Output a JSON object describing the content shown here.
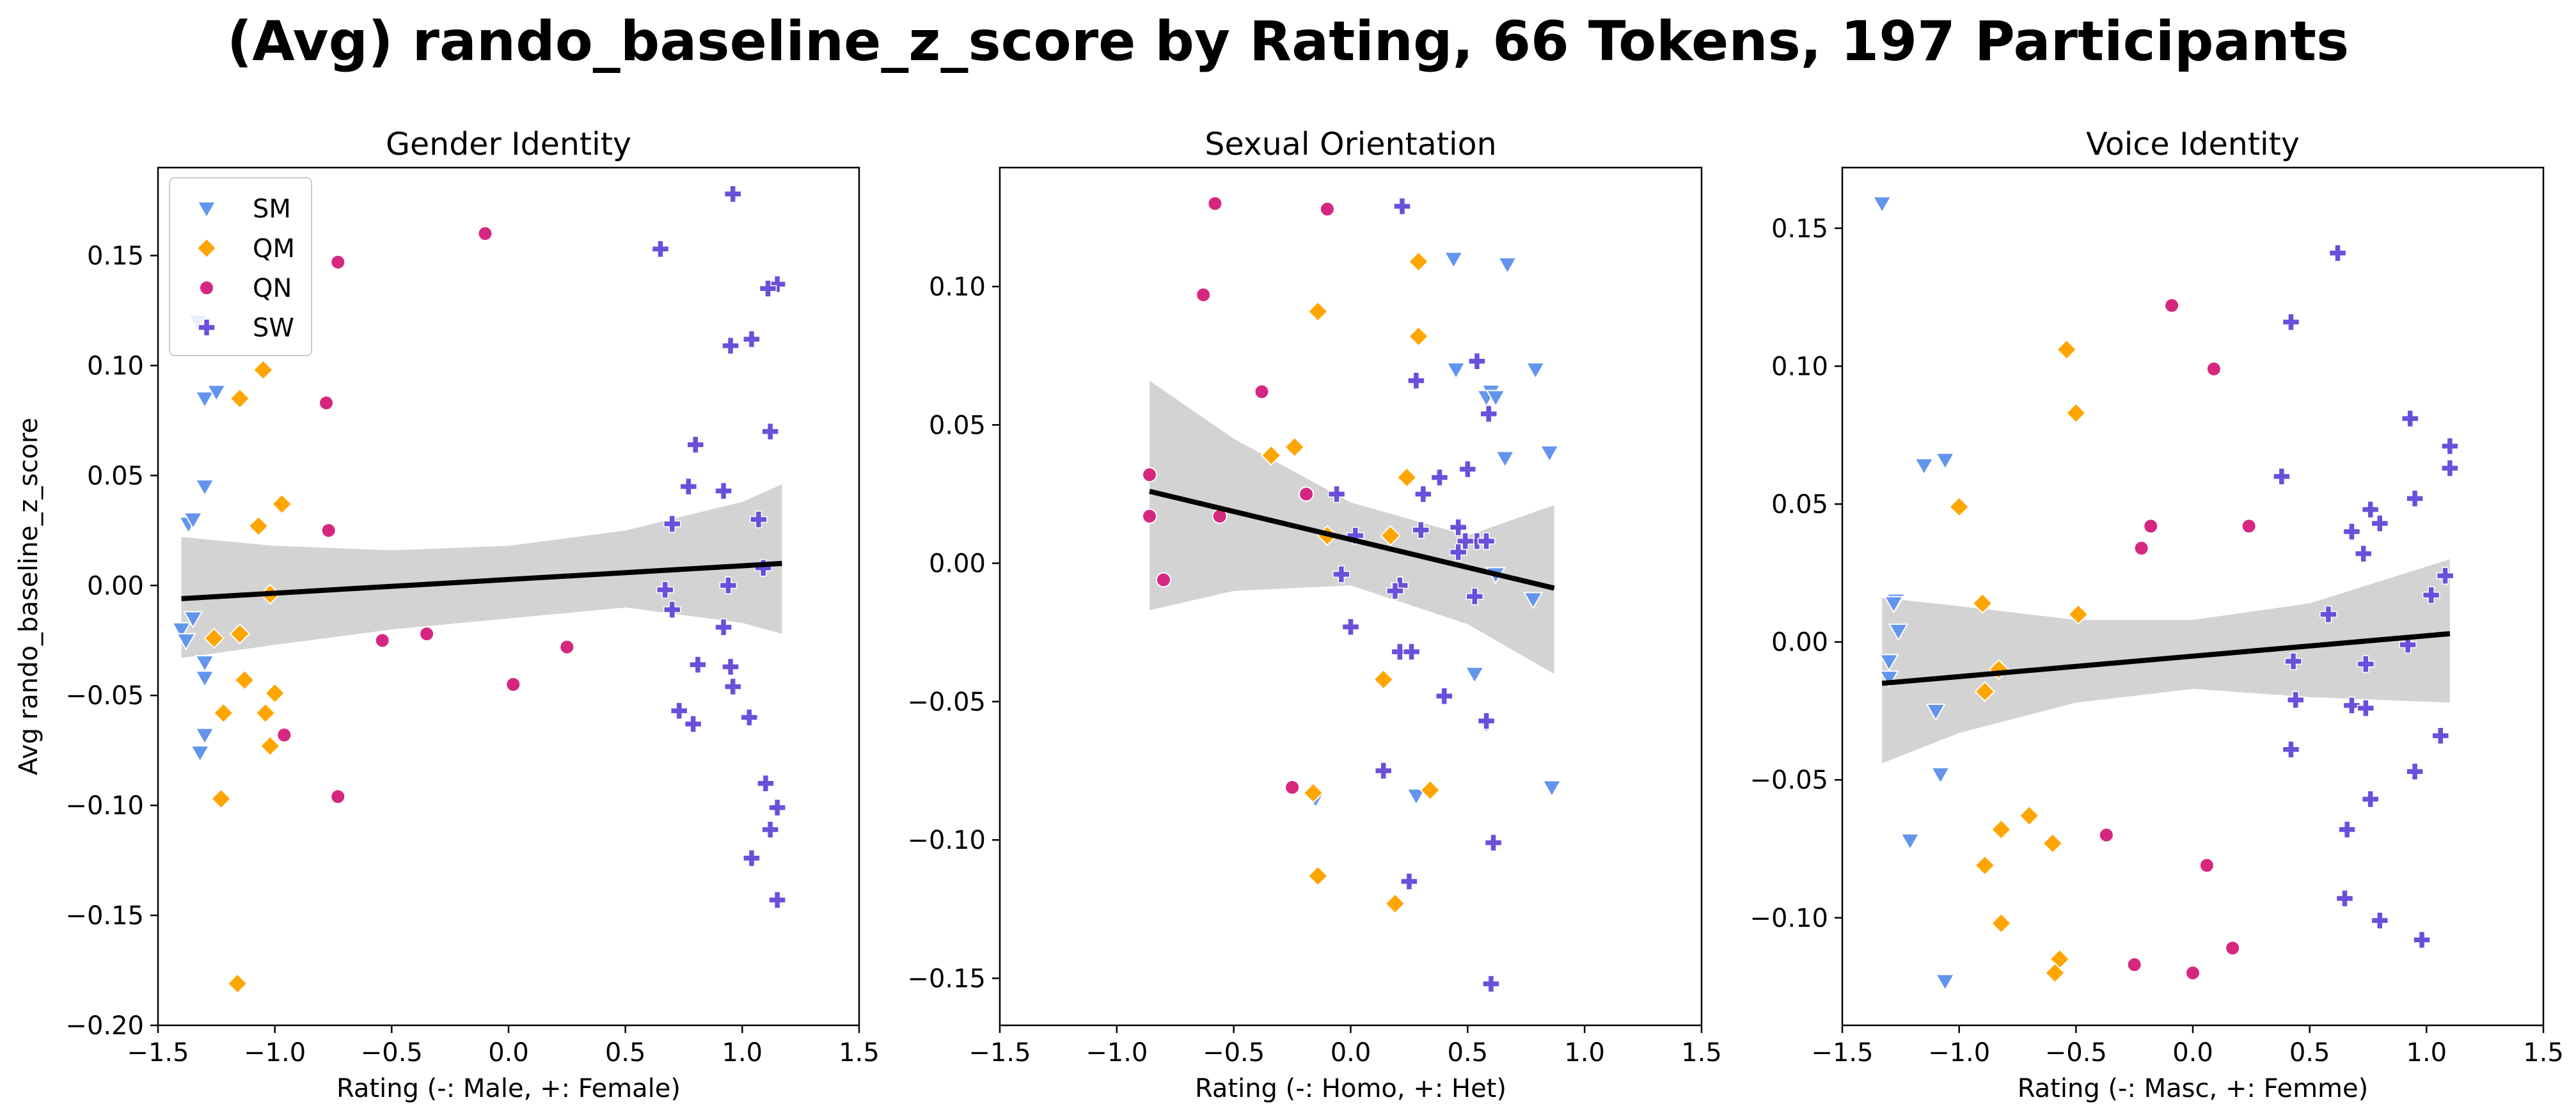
{
  "suptitle": "(Avg) rando_baseline_z_score by Rating, 66 Tokens, 197 Participants",
  "colors": {
    "SM": "#6495ED",
    "QM": "#FFA500",
    "QN": "#D62780",
    "SW": "#6A4FDB",
    "fit_line": "#000000",
    "ci_band": "#D3D3D3"
  },
  "legend": [
    {
      "label": "SM",
      "marker": "triangle-down-icon"
    },
    {
      "label": "QM",
      "marker": "diamond-icon"
    },
    {
      "label": "QN",
      "marker": "circle-icon"
    },
    {
      "label": "SW",
      "marker": "plus-icon"
    }
  ],
  "chart_data": [
    {
      "type": "scatter",
      "title": "Gender Identity",
      "xlabel": "Rating (-: Male, +: Female)",
      "ylabel": "Avg rando_baseline_z_score",
      "xlim": [
        -1.5,
        1.5
      ],
      "ylim": [
        -0.2,
        0.19
      ],
      "xticks": [
        -1.5,
        -1.0,
        -0.5,
        0.0,
        0.5,
        1.0,
        1.5
      ],
      "xtick_labels": [
        "−1.5",
        "−1.0",
        "−0.5",
        "0.0",
        "0.5",
        "1.0",
        "1.5"
      ],
      "yticks": [
        -0.2,
        -0.15,
        -0.1,
        -0.05,
        0.0,
        0.05,
        0.1,
        0.15
      ],
      "ytick_labels": [
        "−0.20",
        "−0.15",
        "−0.10",
        "−0.05",
        "0.00",
        "0.05",
        "0.10",
        "0.15"
      ],
      "legend_position": "upper-left",
      "fit": {
        "x": [
          -1.4,
          1.17
        ],
        "y": [
          -0.006,
          0.01
        ]
      },
      "ci": {
        "x": [
          -1.4,
          -1.0,
          -0.5,
          0.0,
          0.5,
          1.0,
          1.17
        ],
        "upper": [
          0.022,
          0.018,
          0.016,
          0.018,
          0.025,
          0.038,
          0.046
        ],
        "lower": [
          -0.033,
          -0.027,
          -0.02,
          -0.015,
          -0.01,
          -0.017,
          -0.022
        ]
      },
      "series": [
        {
          "name": "SM",
          "marker": "triangle-down",
          "points": [
            [
              -1.33,
              0.12
            ],
            [
              -1.37,
              0.028
            ],
            [
              -1.35,
              0.03
            ],
            [
              -1.3,
              0.045
            ],
            [
              -1.3,
              0.085
            ],
            [
              -1.25,
              0.088
            ],
            [
              -1.4,
              -0.02
            ],
            [
              -1.38,
              -0.025
            ],
            [
              -1.35,
              -0.015
            ],
            [
              -1.3,
              -0.035
            ],
            [
              -1.3,
              -0.042
            ],
            [
              -1.3,
              -0.068
            ],
            [
              -1.32,
              -0.076
            ]
          ]
        },
        {
          "name": "QM",
          "marker": "diamond",
          "points": [
            [
              -1.15,
              0.085
            ],
            [
              -1.05,
              0.098
            ],
            [
              -0.97,
              0.037
            ],
            [
              -1.07,
              0.027
            ],
            [
              -1.02,
              -0.004
            ],
            [
              -1.15,
              -0.022
            ],
            [
              -1.26,
              -0.024
            ],
            [
              -1.13,
              -0.043
            ],
            [
              -1.0,
              -0.049
            ],
            [
              -1.22,
              -0.058
            ],
            [
              -1.04,
              -0.058
            ],
            [
              -1.02,
              -0.073
            ],
            [
              -1.23,
              -0.097
            ],
            [
              -1.16,
              -0.181
            ]
          ]
        },
        {
          "name": "QN",
          "marker": "circle",
          "points": [
            [
              -0.1,
              0.16
            ],
            [
              -0.73,
              0.147
            ],
            [
              -0.78,
              0.083
            ],
            [
              -0.77,
              0.025
            ],
            [
              -0.54,
              -0.025
            ],
            [
              -0.35,
              -0.022
            ],
            [
              0.25,
              -0.028
            ],
            [
              0.02,
              -0.045
            ],
            [
              -0.96,
              -0.068
            ],
            [
              -0.73,
              -0.096
            ]
          ]
        },
        {
          "name": "SW",
          "marker": "plus",
          "points": [
            [
              0.96,
              0.178
            ],
            [
              0.65,
              0.153
            ],
            [
              1.15,
              0.137
            ],
            [
              1.11,
              0.135
            ],
            [
              1.04,
              0.112
            ],
            [
              0.95,
              0.109
            ],
            [
              1.12,
              0.07
            ],
            [
              0.8,
              0.064
            ],
            [
              0.77,
              0.045
            ],
            [
              0.92,
              0.043
            ],
            [
              1.07,
              0.03
            ],
            [
              0.7,
              0.028
            ],
            [
              1.09,
              0.008
            ],
            [
              0.67,
              -0.002
            ],
            [
              0.94,
              0.0
            ],
            [
              0.7,
              -0.011
            ],
            [
              0.92,
              -0.019
            ],
            [
              0.81,
              -0.036
            ],
            [
              0.95,
              -0.037
            ],
            [
              0.96,
              -0.046
            ],
            [
              0.73,
              -0.057
            ],
            [
              0.79,
              -0.063
            ],
            [
              1.03,
              -0.06
            ],
            [
              1.1,
              -0.09
            ],
            [
              1.15,
              -0.101
            ],
            [
              1.12,
              -0.111
            ],
            [
              1.04,
              -0.124
            ],
            [
              1.15,
              -0.143
            ]
          ]
        }
      ]
    },
    {
      "type": "scatter",
      "title": "Sexual Orientation",
      "xlabel": "Rating (-: Homo, +: Het)",
      "ylabel": "",
      "xlim": [
        -1.5,
        1.5
      ],
      "ylim": [
        -0.167,
        0.143
      ],
      "xticks": [
        -1.5,
        -1.0,
        -0.5,
        0.0,
        0.5,
        1.0,
        1.5
      ],
      "xtick_labels": [
        "−1.5",
        "−1.0",
        "−0.5",
        "0.0",
        "0.5",
        "1.0",
        "1.5"
      ],
      "yticks": [
        -0.15,
        -0.1,
        -0.05,
        0.0,
        0.05,
        0.1
      ],
      "ytick_labels": [
        "−0.15",
        "−0.10",
        "−0.05",
        "0.00",
        "0.05",
        "0.10"
      ],
      "fit": {
        "x": [
          -0.86,
          0.87
        ],
        "y": [
          0.026,
          -0.009
        ]
      },
      "ci": {
        "x": [
          -0.86,
          -0.5,
          0.0,
          0.5,
          0.87
        ],
        "upper": [
          0.066,
          0.045,
          0.022,
          0.01,
          0.021
        ],
        "lower": [
          -0.017,
          -0.01,
          -0.008,
          -0.022,
          -0.04
        ]
      },
      "series": [
        {
          "name": "SM",
          "marker": "triangle-down",
          "points": [
            [
              0.44,
              0.11
            ],
            [
              0.67,
              0.108
            ],
            [
              0.79,
              0.07
            ],
            [
              0.45,
              0.07
            ],
            [
              0.6,
              0.062
            ],
            [
              0.58,
              0.06
            ],
            [
              0.62,
              0.06
            ],
            [
              0.85,
              0.04
            ],
            [
              0.66,
              0.038
            ],
            [
              0.62,
              -0.004
            ],
            [
              0.78,
              -0.013
            ],
            [
              0.53,
              -0.04
            ],
            [
              0.58,
              -0.058
            ],
            [
              0.28,
              -0.084
            ],
            [
              0.86,
              -0.081
            ],
            [
              -0.15,
              -0.085
            ]
          ]
        },
        {
          "name": "QM",
          "marker": "diamond",
          "points": [
            [
              0.29,
              0.109
            ],
            [
              -0.14,
              0.091
            ],
            [
              0.29,
              0.082
            ],
            [
              -0.24,
              0.042
            ],
            [
              -0.34,
              0.039
            ],
            [
              0.24,
              0.031
            ],
            [
              -0.1,
              0.01
            ],
            [
              0.17,
              0.01
            ],
            [
              0.14,
              -0.042
            ],
            [
              -0.16,
              -0.083
            ],
            [
              0.34,
              -0.082
            ],
            [
              -0.14,
              -0.113
            ],
            [
              0.19,
              -0.123
            ]
          ]
        },
        {
          "name": "QN",
          "marker": "circle",
          "points": [
            [
              -0.58,
              0.13
            ],
            [
              -0.1,
              0.128
            ],
            [
              -0.63,
              0.097
            ],
            [
              -0.38,
              0.062
            ],
            [
              -0.86,
              0.032
            ],
            [
              -0.19,
              0.025
            ],
            [
              -0.86,
              0.017
            ],
            [
              -0.56,
              0.017
            ],
            [
              -0.8,
              -0.006
            ],
            [
              -0.25,
              -0.081
            ]
          ]
        },
        {
          "name": "SW",
          "marker": "plus",
          "points": [
            [
              0.22,
              0.129
            ],
            [
              0.54,
              0.073
            ],
            [
              0.28,
              0.066
            ],
            [
              0.59,
              0.054
            ],
            [
              0.5,
              0.034
            ],
            [
              0.38,
              0.031
            ],
            [
              -0.06,
              0.025
            ],
            [
              0.31,
              0.025
            ],
            [
              0.02,
              0.01
            ],
            [
              0.3,
              0.012
            ],
            [
              0.46,
              0.013
            ],
            [
              0.54,
              0.008
            ],
            [
              0.49,
              0.008
            ],
            [
              0.58,
              0.008
            ],
            [
              0.46,
              0.004
            ],
            [
              -0.04,
              -0.004
            ],
            [
              0.21,
              -0.008
            ],
            [
              0.19,
              -0.01
            ],
            [
              0.53,
              -0.012
            ],
            [
              0.0,
              -0.023
            ],
            [
              0.21,
              -0.032
            ],
            [
              0.26,
              -0.032
            ],
            [
              0.4,
              -0.048
            ],
            [
              0.58,
              -0.057
            ],
            [
              0.14,
              -0.075
            ],
            [
              0.25,
              -0.115
            ],
            [
              0.61,
              -0.101
            ],
            [
              0.6,
              -0.152
            ]
          ]
        }
      ]
    },
    {
      "type": "scatter",
      "title": "Voice Identity",
      "xlabel": "Rating (-: Masc, +: Femme)",
      "ylabel": "",
      "xlim": [
        -1.5,
        1.5
      ],
      "ylim": [
        -0.139,
        0.172
      ],
      "xticks": [
        -1.5,
        -1.0,
        -0.5,
        0.0,
        0.5,
        1.0,
        1.5
      ],
      "xtick_labels": [
        "−1.5",
        "−1.0",
        "−0.5",
        "0.0",
        "0.5",
        "1.0",
        "1.5"
      ],
      "yticks": [
        -0.1,
        -0.05,
        0.0,
        0.05,
        0.1,
        0.15
      ],
      "ytick_labels": [
        "−0.10",
        "−0.05",
        "0.00",
        "0.05",
        "0.10",
        "0.15"
      ],
      "fit": {
        "x": [
          -1.33,
          1.1
        ],
        "y": [
          -0.015,
          0.003
        ]
      },
      "ci": {
        "x": [
          -1.33,
          -1.0,
          -0.5,
          0.0,
          0.5,
          1.1
        ],
        "upper": [
          0.016,
          0.013,
          0.008,
          0.008,
          0.014,
          0.03
        ],
        "lower": [
          -0.044,
          -0.033,
          -0.022,
          -0.017,
          -0.02,
          -0.022
        ]
      },
      "series": [
        {
          "name": "SM",
          "marker": "triangle-down",
          "points": [
            [
              -1.33,
              0.159
            ],
            [
              -1.06,
              0.066
            ],
            [
              -1.15,
              0.064
            ],
            [
              -1.27,
              0.015
            ],
            [
              -1.28,
              0.014
            ],
            [
              -1.26,
              0.004
            ],
            [
              -1.3,
              -0.007
            ],
            [
              -1.3,
              -0.013
            ],
            [
              -1.1,
              -0.025
            ],
            [
              -1.08,
              -0.048
            ],
            [
              -1.21,
              -0.072
            ],
            [
              -1.06,
              -0.123
            ]
          ]
        },
        {
          "name": "QM",
          "marker": "diamond",
          "points": [
            [
              -0.54,
              0.106
            ],
            [
              -0.5,
              0.083
            ],
            [
              -1.0,
              0.049
            ],
            [
              -0.9,
              0.014
            ],
            [
              -0.49,
              0.01
            ],
            [
              -0.83,
              -0.01
            ],
            [
              -0.89,
              -0.018
            ],
            [
              -0.7,
              -0.063
            ],
            [
              -0.82,
              -0.068
            ],
            [
              -0.6,
              -0.073
            ],
            [
              -0.89,
              -0.081
            ],
            [
              -0.82,
              -0.102
            ],
            [
              -0.57,
              -0.115
            ],
            [
              -0.59,
              -0.12
            ]
          ]
        },
        {
          "name": "QN",
          "marker": "circle",
          "points": [
            [
              -0.09,
              0.122
            ],
            [
              0.09,
              0.099
            ],
            [
              -0.18,
              0.042
            ],
            [
              0.24,
              0.042
            ],
            [
              -0.22,
              0.034
            ],
            [
              -0.37,
              -0.07
            ],
            [
              0.06,
              -0.081
            ],
            [
              0.17,
              -0.111
            ],
            [
              -0.25,
              -0.117
            ],
            [
              0.0,
              -0.12
            ]
          ]
        },
        {
          "name": "SW",
          "marker": "plus",
          "points": [
            [
              0.62,
              0.141
            ],
            [
              0.42,
              0.116
            ],
            [
              0.93,
              0.081
            ],
            [
              1.1,
              0.071
            ],
            [
              1.1,
              0.063
            ],
            [
              0.38,
              0.06
            ],
            [
              0.95,
              0.052
            ],
            [
              0.76,
              0.048
            ],
            [
              0.8,
              0.043
            ],
            [
              0.68,
              0.04
            ],
            [
              0.73,
              0.032
            ],
            [
              1.08,
              0.024
            ],
            [
              1.02,
              0.017
            ],
            [
              0.58,
              0.01
            ],
            [
              0.92,
              -0.001
            ],
            [
              0.43,
              -0.007
            ],
            [
              0.74,
              -0.008
            ],
            [
              0.44,
              -0.021
            ],
            [
              0.68,
              -0.023
            ],
            [
              0.74,
              -0.024
            ],
            [
              1.06,
              -0.034
            ],
            [
              0.42,
              -0.039
            ],
            [
              0.95,
              -0.047
            ],
            [
              0.76,
              -0.057
            ],
            [
              0.66,
              -0.068
            ],
            [
              0.65,
              -0.093
            ],
            [
              0.8,
              -0.101
            ],
            [
              0.98,
              -0.108
            ]
          ]
        }
      ]
    }
  ]
}
